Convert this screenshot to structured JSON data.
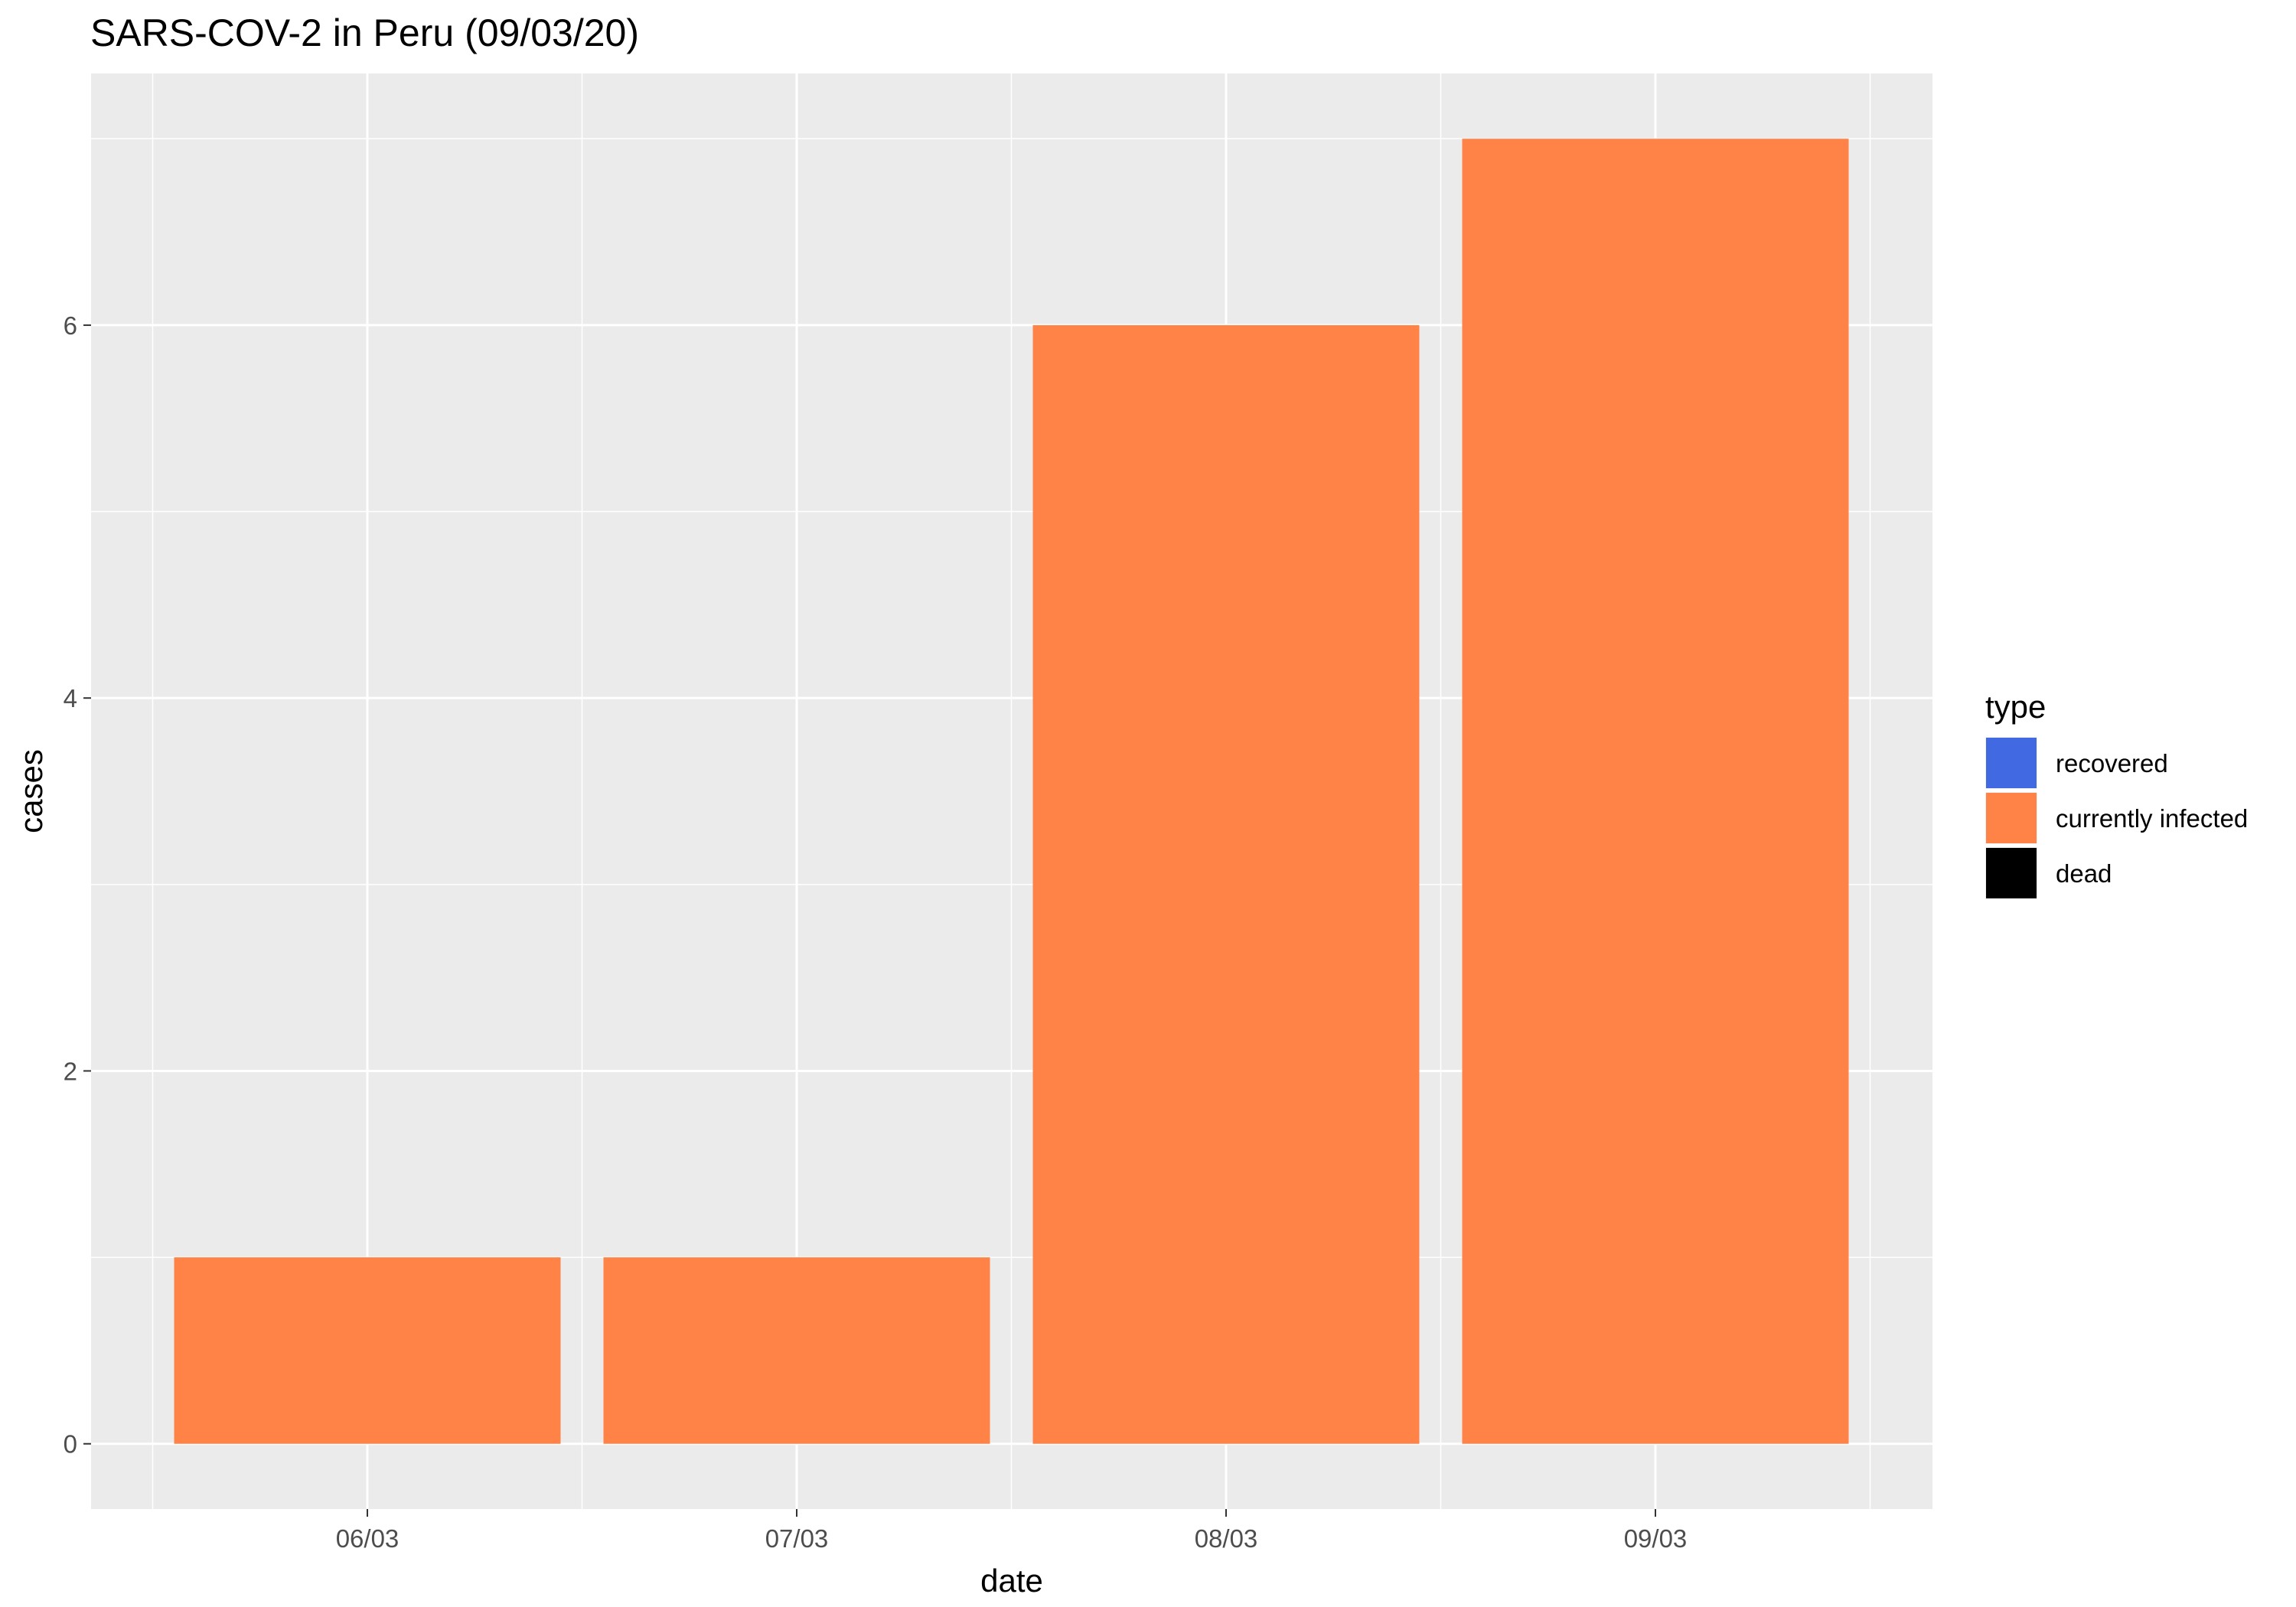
{
  "chart_data": {
    "type": "bar",
    "title": "SARS-COV-2 in Peru (09/03/20)",
    "xlabel": "date",
    "ylabel": "cases",
    "categories": [
      "06/03",
      "07/03",
      "08/03",
      "09/03"
    ],
    "series": [
      {
        "name": "recovered",
        "values": [
          0,
          0,
          0,
          0
        ]
      },
      {
        "name": "currently infected",
        "values": [
          1,
          1,
          6,
          7
        ]
      },
      {
        "name": "dead",
        "values": [
          0,
          0,
          0,
          0
        ]
      }
    ],
    "ylim": [
      -0.35,
      7.35
    ],
    "yticks": [
      0,
      2,
      4,
      6
    ],
    "grid": true,
    "stacked": true,
    "legend": {
      "title": "type",
      "placement": "right",
      "entries": [
        {
          "label": "recovered",
          "color": "#4169E1"
        },
        {
          "label": "currently infected",
          "color": "#FF8247"
        },
        {
          "label": "dead",
          "color": "#000000"
        }
      ]
    },
    "colors": {
      "panel": "#EBEBEB",
      "grid": "#FFFFFF"
    }
  }
}
